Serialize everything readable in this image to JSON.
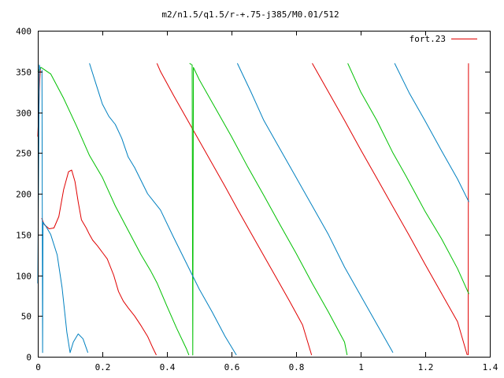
{
  "chart_data": {
    "type": "line",
    "title": "m2/n1.5/q1.5/r-+.75-j385/M0.01/512",
    "xlabel": "",
    "ylabel": "",
    "xlim": [
      0,
      1.4
    ],
    "ylim": [
      0,
      400
    ],
    "x_ticks": [
      0,
      0.2,
      0.4,
      0.6,
      0.8,
      1,
      1.2,
      1.4
    ],
    "x_tick_labels": [
      "0",
      "0.2",
      "0.4",
      "0.6",
      "0.8",
      "1",
      "1.2",
      "1.4"
    ],
    "y_ticks": [
      0,
      50,
      100,
      150,
      200,
      250,
      300,
      350,
      400
    ],
    "y_tick_labels": [
      "0",
      "50",
      "100",
      "150",
      "200",
      "250",
      "300",
      "350",
      "400"
    ],
    "grid": false,
    "legend_position": "top-right",
    "series": [
      {
        "name": "fort.23",
        "color": "#e00000",
        "segments": [
          [
            [
              0.0,
              270
            ],
            [
              0.003,
              300
            ],
            [
              0.006,
              340
            ],
            [
              0.008,
              355
            ]
          ],
          [
            [
              0.012,
              170
            ],
            [
              0.02,
              162
            ],
            [
              0.035,
              157
            ],
            [
              0.05,
              158
            ],
            [
              0.065,
              172
            ],
            [
              0.08,
              205
            ],
            [
              0.095,
              227
            ],
            [
              0.105,
              229
            ],
            [
              0.115,
              215
            ],
            [
              0.125,
              190
            ],
            [
              0.135,
              168
            ],
            [
              0.15,
              158
            ],
            [
              0.16,
              150
            ],
            [
              0.17,
              143
            ],
            [
              0.185,
              136
            ],
            [
              0.2,
              128
            ],
            [
              0.215,
              120
            ],
            [
              0.235,
              100
            ],
            [
              0.25,
              80
            ],
            [
              0.265,
              68
            ],
            [
              0.28,
              60
            ],
            [
              0.3,
              50
            ],
            [
              0.32,
              38
            ],
            [
              0.34,
              25
            ],
            [
              0.355,
              12
            ],
            [
              0.367,
              2
            ]
          ],
          [
            [
              0.369,
              360
            ],
            [
              0.38,
              350
            ],
            [
              0.42,
              321
            ],
            [
              0.46,
              293
            ],
            [
              0.5,
              265
            ],
            [
              0.54,
              237
            ],
            [
              0.58,
              209
            ],
            [
              0.62,
              180
            ],
            [
              0.66,
              152
            ],
            [
              0.7,
              124
            ],
            [
              0.74,
              96
            ],
            [
              0.78,
              68
            ],
            [
              0.82,
              39
            ],
            [
              0.848,
              2
            ]
          ],
          [
            [
              0.85,
              360
            ],
            [
              0.9,
              325
            ],
            [
              0.95,
              290
            ],
            [
              1.0,
              254
            ],
            [
              1.05,
              219
            ],
            [
              1.1,
              184
            ],
            [
              1.15,
              149
            ],
            [
              1.2,
              113
            ],
            [
              1.25,
              78
            ],
            [
              1.3,
              43
            ],
            [
              1.33,
              2
            ]
          ],
          [
            [
              1.333,
              2
            ],
            [
              1.334,
              360
            ]
          ]
        ]
      },
      {
        "color": "#00c000",
        "segments": [
          [
            [
              0.0,
              350
            ],
            [
              0.01,
              355
            ],
            [
              0.04,
              347
            ],
            [
              0.08,
              317
            ],
            [
              0.12,
              283
            ],
            [
              0.16,
              247
            ],
            [
              0.2,
              220
            ],
            [
              0.24,
              185
            ],
            [
              0.28,
              155
            ],
            [
              0.32,
              125
            ],
            [
              0.35,
              105
            ],
            [
              0.37,
              90
            ],
            [
              0.4,
              62
            ],
            [
              0.43,
              35
            ],
            [
              0.46,
              10
            ],
            [
              0.468,
              2
            ]
          ],
          [
            [
              0.47,
              360
            ],
            [
              0.478,
              358
            ],
            [
              0.48,
              2
            ],
            [
              0.482,
              355
            ],
            [
              0.5,
              340
            ],
            [
              0.55,
              305
            ],
            [
              0.6,
              270
            ],
            [
              0.65,
              233
            ],
            [
              0.7,
              198
            ],
            [
              0.75,
              162
            ],
            [
              0.8,
              127
            ],
            [
              0.85,
              90
            ],
            [
              0.9,
              55
            ],
            [
              0.95,
              18
            ],
            [
              0.958,
              2
            ]
          ],
          [
            [
              0.96,
              360
            ],
            [
              1.0,
              325
            ],
            [
              1.05,
              290
            ],
            [
              1.1,
              250
            ],
            [
              1.14,
              222
            ],
            [
              1.2,
              178
            ],
            [
              1.25,
              145
            ],
            [
              1.3,
              108
            ],
            [
              1.335,
              77
            ]
          ]
        ]
      },
      {
        "color": "#0080c0",
        "segments": [
          [
            [
              0.0,
              90
            ],
            [
              0.002,
              200
            ],
            [
              0.005,
              358
            ],
            [
              0.008,
              352
            ]
          ],
          [
            [
              0.013,
              352
            ],
            [
              0.015,
              5
            ],
            [
              0.016,
              165
            ],
            [
              0.025,
              160
            ],
            [
              0.04,
              150
            ],
            [
              0.06,
              125
            ],
            [
              0.075,
              85
            ],
            [
              0.09,
              30
            ],
            [
              0.1,
              5
            ],
            [
              0.11,
              18
            ],
            [
              0.125,
              28
            ],
            [
              0.14,
              22
            ],
            [
              0.155,
              5
            ]
          ],
          [
            [
              0.16,
              360
            ],
            [
              0.18,
              335
            ],
            [
              0.2,
              310
            ],
            [
              0.22,
              295
            ],
            [
              0.24,
              285
            ],
            [
              0.26,
              268
            ],
            [
              0.28,
              245
            ],
            [
              0.3,
              232
            ],
            [
              0.34,
              200
            ],
            [
              0.38,
              180
            ],
            [
              0.42,
              147
            ],
            [
              0.46,
              115
            ],
            [
              0.5,
              83
            ],
            [
              0.54,
              55
            ],
            [
              0.58,
              25
            ],
            [
              0.615,
              2
            ]
          ],
          [
            [
              0.618,
              360
            ],
            [
              0.66,
              325
            ],
            [
              0.7,
              290
            ],
            [
              0.75,
              255
            ],
            [
              0.8,
              220
            ],
            [
              0.85,
              185
            ],
            [
              0.9,
              150
            ],
            [
              0.95,
              110
            ],
            [
              1.0,
              75
            ],
            [
              1.05,
              40
            ],
            [
              1.1,
              5
            ]
          ],
          [
            [
              1.105,
              360
            ],
            [
              1.15,
              324
            ],
            [
              1.2,
              289
            ],
            [
              1.25,
              253
            ],
            [
              1.3,
              218
            ],
            [
              1.335,
              190
            ]
          ]
        ]
      }
    ]
  }
}
